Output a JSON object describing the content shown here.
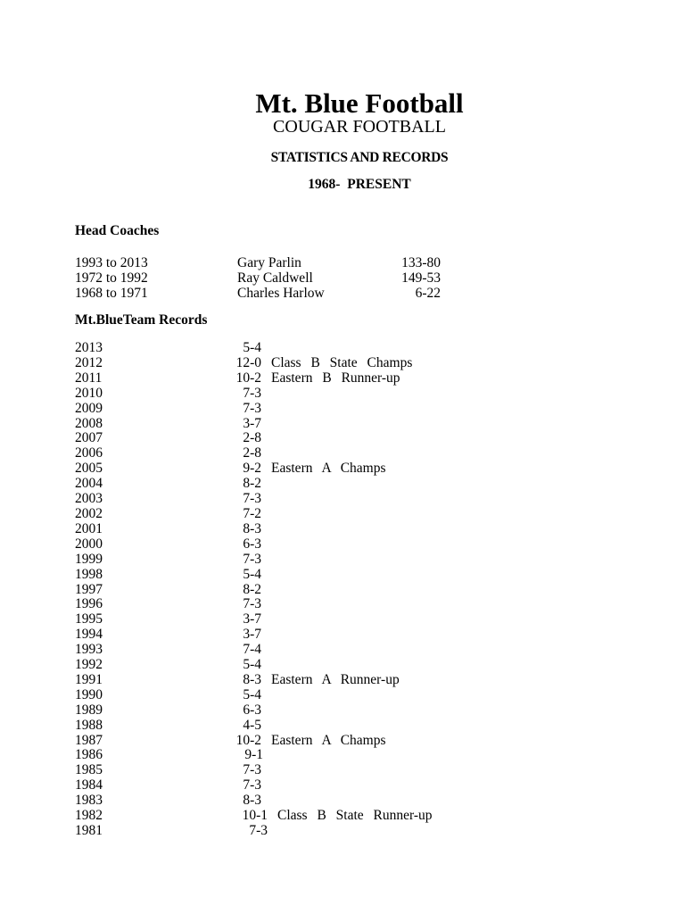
{
  "page": {
    "title": "Mt. Blue Football",
    "subtitle": "COUGAR FOOTBALL",
    "heading2": "STATISTICS AND RECORDS",
    "heading3": "1968- PRESENT"
  },
  "head_coaches": {
    "heading": "Head Coaches",
    "rows": [
      {
        "years": "1993 to 2013",
        "name": "Gary Parlin",
        "record": "133-80"
      },
      {
        "years": "1972 to 1992",
        "name": "Ray Caldwell",
        "record": "149-53"
      },
      {
        "years": "1968 to 1971",
        "name": "Charles Harlow",
        "record": "6-22"
      }
    ]
  },
  "team_records": {
    "heading": "Mt.BlueTeam Records",
    "rows": [
      {
        "year": "2013",
        "record": "5-4",
        "note": "",
        "offset": 0
      },
      {
        "year": "2012",
        "record": "12-0",
        "note": "Class B State Champs",
        "offset": 0
      },
      {
        "year": "2011",
        "record": "10-2",
        "note": "Eastern B Runner-up",
        "offset": 0
      },
      {
        "year": "2010",
        "record": "7-3",
        "note": "",
        "offset": 0
      },
      {
        "year": "2009",
        "record": "7-3",
        "note": "",
        "offset": 0
      },
      {
        "year": "2008",
        "record": "3-7",
        "note": "",
        "offset": 0
      },
      {
        "year": "2007",
        "record": "2-8",
        "note": "",
        "offset": 0
      },
      {
        "year": "2006",
        "record": "2-8",
        "note": "",
        "offset": 0
      },
      {
        "year": "2005",
        "record": "9-2",
        "note": "Eastern A Champs",
        "offset": 0
      },
      {
        "year": "2004",
        "record": "8-2",
        "note": "",
        "offset": 0
      },
      {
        "year": "2003",
        "record": "7-3",
        "note": "",
        "offset": 0
      },
      {
        "year": "2002",
        "record": "7-2",
        "note": "",
        "offset": 0
      },
      {
        "year": "2001",
        "record": "8-3",
        "note": "",
        "offset": 0
      },
      {
        "year": "2000",
        "record": "6-3",
        "note": "",
        "offset": 0
      },
      {
        "year": "1999",
        "record": "7-3",
        "note": "",
        "offset": 0
      },
      {
        "year": "1998",
        "record": "5-4",
        "note": "",
        "offset": 0
      },
      {
        "year": "1997",
        "record": "8-2",
        "note": "",
        "offset": 0
      },
      {
        "year": "1996",
        "record": "7-3",
        "note": "",
        "offset": 0
      },
      {
        "year": "1995",
        "record": "3-7",
        "note": "",
        "offset": 0
      },
      {
        "year": "1994",
        "record": "3-7",
        "note": "",
        "offset": 0
      },
      {
        "year": "1993",
        "record": "7-4",
        "note": "",
        "offset": 0
      },
      {
        "year": "1992",
        "record": "5-4",
        "note": "",
        "offset": 0
      },
      {
        "year": "1991",
        "record": "8-3",
        "note": "Eastern A Runner-up",
        "offset": 0
      },
      {
        "year": "1990",
        "record": "5-4",
        "note": "",
        "offset": 0
      },
      {
        "year": "1989",
        "record": "6-3",
        "note": "",
        "offset": 0
      },
      {
        "year": "1988",
        "record": "4-5",
        "note": "",
        "offset": 0
      },
      {
        "year": "1987",
        "record": "10-2",
        "note": "Eastern A Champs",
        "offset": 0
      },
      {
        "year": "1986",
        "record": "9-1",
        "note": "",
        "offset": 2
      },
      {
        "year": "1985",
        "record": "7-3",
        "note": "",
        "offset": 0
      },
      {
        "year": "1984",
        "record": "7-3",
        "note": "",
        "offset": 0
      },
      {
        "year": "1983",
        "record": "8-3",
        "note": "",
        "offset": 0
      },
      {
        "year": "1982",
        "record": "10-1",
        "note": "Class B State Runner-up",
        "offset": 7
      },
      {
        "year": "1981",
        "record": "7-3",
        "note": "",
        "offset": 7
      }
    ]
  }
}
